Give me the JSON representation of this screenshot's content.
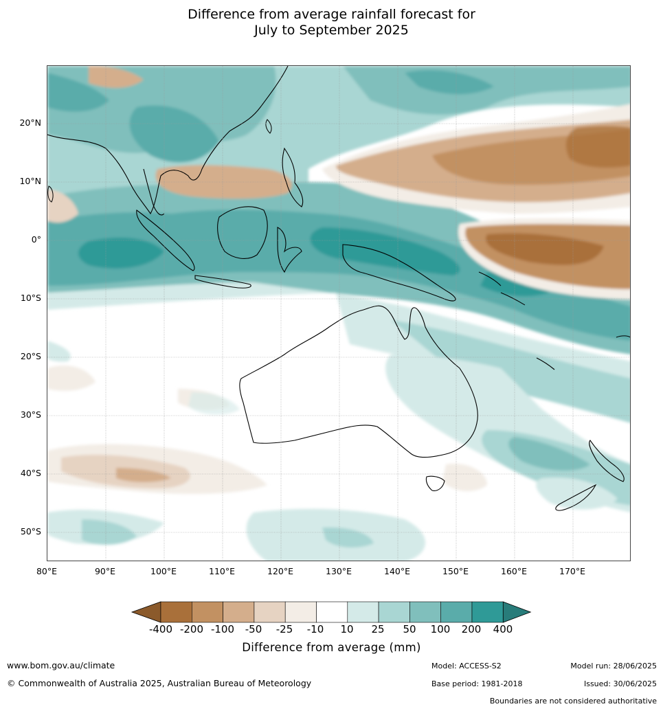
{
  "title": {
    "line1": "Difference from average rainfall forecast for",
    "line2": "July to September 2025"
  },
  "map": {
    "lat_labels": [
      "20°N",
      "10°N",
      "0°",
      "10°S",
      "20°S",
      "30°S",
      "40°S",
      "50°S"
    ],
    "lon_labels": [
      "80°E",
      "90°E",
      "100°E",
      "110°E",
      "120°E",
      "130°E",
      "140°E",
      "150°E",
      "160°E",
      "170°E"
    ],
    "lon_range": [
      80,
      180
    ],
    "lat_range": [
      -55,
      30
    ]
  },
  "legend": {
    "ticks": [
      "-400",
      "-200",
      "-100",
      "-50",
      "-25",
      "-10",
      "10",
      "25",
      "50",
      "100",
      "200",
      "400"
    ],
    "colors": [
      "#8b5a2b",
      "#a9703a",
      "#c29162",
      "#d4ae8c",
      "#e6d3c2",
      "#f3ede6",
      "#ffffff",
      "#d4eae8",
      "#a9d6d3",
      "#80bfbc",
      "#5aacaa",
      "#2f9a97",
      "#287c7a"
    ],
    "title": "Difference from average (mm)"
  },
  "footer": {
    "url": "www.bom.gov.au/climate",
    "copyright": "© Commonwealth of Australia 2025, Australian Bureau of Meteorology",
    "model": "Model: ACCESS-S2",
    "base_period": "Base period: 1981-2018",
    "model_run": "Model run: 28/06/2025",
    "issued": "Issued: 30/06/2025",
    "disclaimer": "Boundaries are not considered authoritative"
  }
}
